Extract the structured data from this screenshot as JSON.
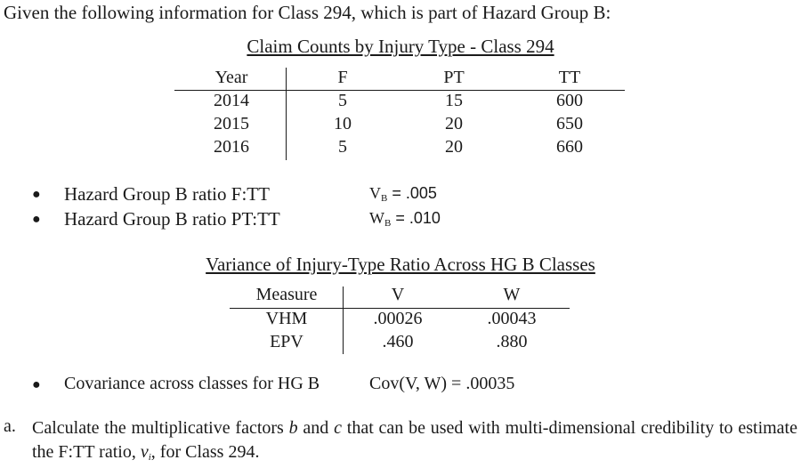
{
  "intro": "Given the following information for Class 294, which is part of Hazard Group B:",
  "claim_table": {
    "title": "Claim Counts by Injury Type - Class 294",
    "headers": [
      "Year",
      "F",
      "PT",
      "TT"
    ],
    "rows": [
      [
        "2014",
        "5",
        "15",
        "600"
      ],
      [
        "2015",
        "10",
        "20",
        "650"
      ],
      [
        "2016",
        "5",
        "20",
        "660"
      ]
    ]
  },
  "ratios": [
    {
      "label": "Hazard Group B ratio F:TT",
      "var": "V",
      "sub": "B",
      "value": " = .005"
    },
    {
      "label": "Hazard Group B ratio PT:TT",
      "var": "W",
      "sub": "B",
      "value": " = .010"
    }
  ],
  "variance_table": {
    "title": "Variance of Injury-Type Ratio Across HG B Classes",
    "headers": [
      "Measure",
      "V",
      "W"
    ],
    "rows": [
      [
        "VHM",
        ".00026",
        ".00043"
      ],
      [
        "EPV",
        ".460",
        ".880"
      ]
    ]
  },
  "covariance": {
    "label": "Covariance across classes for HG B",
    "value": "Cov(V, W) = .00035"
  },
  "question": {
    "letter": "a.",
    "text_parts": {
      "p1": "Calculate the multiplicative factors ",
      "b": "b",
      "p2": " and ",
      "c": "c",
      "p3": " that can be used with multi-dimensional credibility to estimate the F:TT ratio, ",
      "v": "v",
      "vi": "i",
      "p4": ", for Class 294."
    }
  },
  "bullet_glyph": "●"
}
